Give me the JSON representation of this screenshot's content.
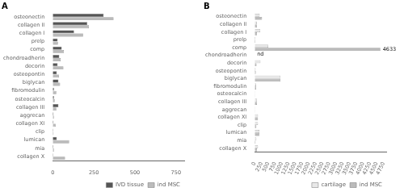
{
  "chart_data": [
    {
      "type": "bar",
      "orientation": "horizontal",
      "title": "A",
      "categories": [
        "osteonectin",
        "collagen II",
        "collagen I",
        "prelp",
        "comp",
        "chondroadherin",
        "decorin",
        "osteopontin",
        "biglycan",
        "fibromodulin",
        "osteocalcin",
        "collagen III",
        "aggrecan",
        "collagen XI",
        "clip",
        "lumican",
        "mia",
        "collagen X"
      ],
      "series": [
        {
          "name": "IVD tissue",
          "color": "#555555",
          "values": [
            310,
            210,
            130,
            30,
            55,
            40,
            30,
            25,
            35,
            8,
            8,
            35,
            5,
            5,
            3,
            25,
            4,
            3
          ]
        },
        {
          "name": "ind MSC",
          "color": "#bbbbbb",
          "values": [
            370,
            220,
            185,
            32,
            68,
            48,
            65,
            38,
            45,
            22,
            12,
            22,
            7,
            18,
            5,
            100,
            7,
            75
          ]
        }
      ],
      "xlim": [
        0,
        800
      ],
      "xticks": [
        0,
        250,
        500,
        750
      ],
      "grid": false,
      "legend": "lower right"
    },
    {
      "type": "bar",
      "orientation": "horizontal",
      "title": "B",
      "categories": [
        "osteonectin",
        "collagen II",
        "collagen I",
        "prelp",
        "comp",
        "chondroadherin",
        "decorin",
        "osteopontin",
        "biglycan",
        "fibromodulin",
        "osteocalcin",
        "collagen III",
        "aggrecan",
        "collagen XI",
        "clip",
        "lumican",
        "mia",
        "collagen X"
      ],
      "series": [
        {
          "name": "cartilage",
          "color": "#e8e8e8",
          "values": [
            180,
            80,
            205,
            22,
            500,
            0,
            210,
            30,
            950,
            50,
            10,
            85,
            10,
            120,
            120,
            175,
            60,
            120
          ]
        },
        {
          "name": "ind MSC",
          "color": "#bbbbbb",
          "values": [
            270,
            80,
            80,
            22,
            4633,
            0,
            65,
            38,
            950,
            50,
            10,
            85,
            10,
            120,
            60,
            175,
            30,
            80
          ]
        }
      ],
      "xlim": [
        0,
        4850
      ],
      "xticks": [
        0,
        250,
        500,
        750,
        1000,
        1250,
        1500,
        1750,
        2000,
        2250,
        2500,
        2750,
        3000,
        3250,
        3500,
        3750,
        4000,
        4250,
        4500,
        4750
      ],
      "grid": false,
      "legend": "lower right",
      "annotations": [
        {
          "text": "4633",
          "category": "comp",
          "series": "ind MSC"
        },
        {
          "text": "nd",
          "category": "chondroadherin",
          "series": "cartilage"
        }
      ]
    }
  ]
}
